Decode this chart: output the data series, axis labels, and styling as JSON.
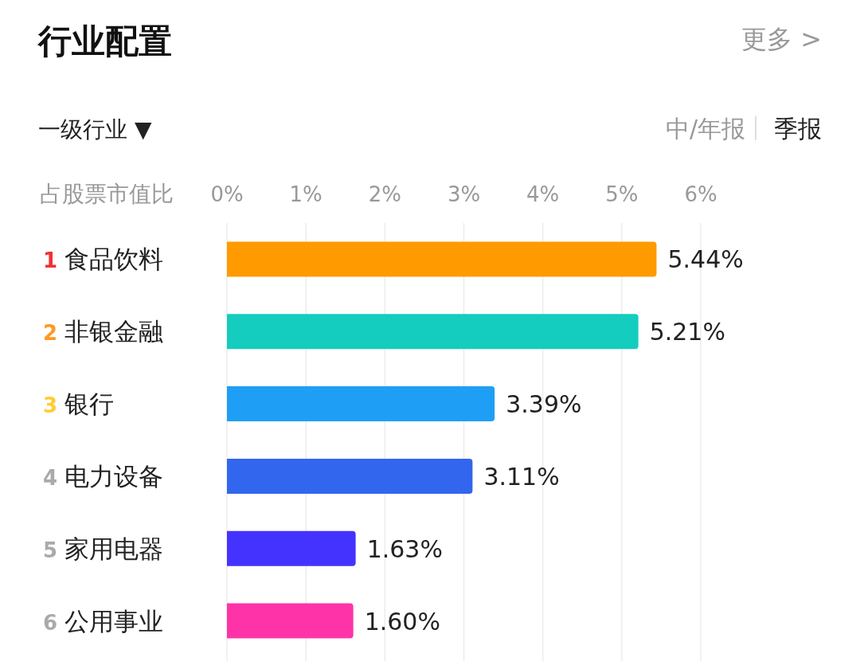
{
  "chart_data": {
    "type": "bar",
    "orientation": "horizontal",
    "title": "行业配置",
    "xlabel": "占股票市值比",
    "annotations": [
      "更多 >",
      "一级行业 ▼",
      "中/年报",
      "季报"
    ],
    "categories": [
      "1 食品饮料",
      "2 非银金融",
      "3 银行",
      "4 电力设备",
      "5 家用电器",
      "6 公用事业"
    ],
    "values": [
      5.44,
      5.21,
      3.39,
      3.11,
      1.63,
      1.6
    ],
    "colors": [
      "#ff9a00",
      "#14cdbf",
      "#1e9ff5",
      "#3366ee",
      "#4433ff",
      "#ff33a8"
    ],
    "value_labels": [
      "5.44%",
      "5.21%",
      "3.39%",
      "3.11%",
      "1.63%",
      "1.60%"
    ],
    "xlim": [
      0,
      6
    ],
    "xticks": [
      {
        "value": 0,
        "label": "0%"
      },
      {
        "value": 1,
        "label": "1%"
      },
      {
        "value": 2,
        "label": "2%"
      },
      {
        "value": 3,
        "label": "3%"
      },
      {
        "value": 4,
        "label": "4%"
      },
      {
        "value": 5,
        "label": "5%"
      },
      {
        "value": 6,
        "label": "6%"
      }
    ],
    "grid": "x"
  }
}
